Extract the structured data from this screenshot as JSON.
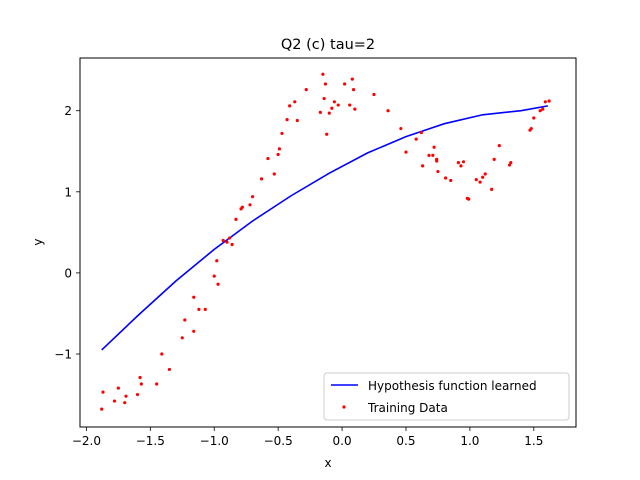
{
  "chart_data": {
    "type": "line",
    "title": "Q2 (c)  tau=2",
    "xlabel": "x",
    "ylabel": "y",
    "xlim": [
      -2.05,
      1.83
    ],
    "ylim": [
      -1.9,
      2.65
    ],
    "xticks": [
      -2.0,
      -1.5,
      -1.0,
      -0.5,
      0.0,
      0.5,
      1.0,
      1.5
    ],
    "xtick_labels": [
      "−2.0",
      "−1.5",
      "−1.0",
      "−0.5",
      "0.0",
      "0.5",
      "1.0",
      "1.5"
    ],
    "yticks": [
      -1,
      0,
      1,
      2
    ],
    "ytick_labels": [
      "−1",
      "0",
      "1",
      "2"
    ],
    "grid": false,
    "legend": {
      "position": "bottom-right"
    },
    "series": [
      {
        "name": "Hypothesis function learned",
        "kind": "line",
        "color": "#0000ff",
        "x": [
          -1.88,
          -1.6,
          -1.3,
          -1.0,
          -0.7,
          -0.4,
          -0.1,
          0.2,
          0.5,
          0.8,
          1.1,
          1.4,
          1.61
        ],
        "y": [
          -0.95,
          -0.53,
          -0.1,
          0.29,
          0.64,
          0.95,
          1.23,
          1.48,
          1.68,
          1.84,
          1.95,
          2.0,
          2.06
        ]
      },
      {
        "name": "Training Data",
        "kind": "scatter",
        "color": "#ff0000",
        "x": [
          -1.88,
          -1.87,
          -1.78,
          -1.75,
          -1.7,
          -1.69,
          -1.6,
          -1.58,
          -1.57,
          -1.45,
          -1.41,
          -1.35,
          -1.25,
          -1.23,
          -1.16,
          -1.16,
          -1.12,
          -1.07,
          -1.0,
          -0.98,
          -0.97,
          -0.93,
          -0.9,
          -0.88,
          -0.86,
          -0.83,
          -0.79,
          -0.78,
          -0.72,
          -0.7,
          -0.63,
          -0.58,
          -0.53,
          -0.5,
          -0.49,
          -0.47,
          -0.43,
          -0.41,
          -0.37,
          -0.35,
          -0.28,
          -0.17,
          -0.15,
          -0.14,
          -0.13,
          -0.12,
          -0.1,
          -0.08,
          -0.06,
          -0.03,
          0.02,
          0.06,
          0.08,
          0.09,
          0.1,
          0.25,
          0.36,
          0.46,
          0.5,
          0.58,
          0.62,
          0.63,
          0.68,
          0.71,
          0.72,
          0.74,
          0.74,
          0.75,
          0.81,
          0.85,
          0.91,
          0.93,
          0.95,
          0.98,
          0.99,
          1.05,
          1.08,
          1.1,
          1.12,
          1.17,
          1.19,
          1.23,
          1.31,
          1.32,
          1.47,
          1.48,
          1.5,
          1.55,
          1.57,
          1.59,
          1.62
        ],
        "y": [
          -1.68,
          -1.47,
          -1.58,
          -1.42,
          -1.6,
          -1.52,
          -1.5,
          -1.29,
          -1.37,
          -1.37,
          -1.0,
          -1.19,
          -0.8,
          -0.58,
          -0.72,
          -0.3,
          -0.45,
          -0.45,
          -0.04,
          0.15,
          -0.14,
          0.4,
          0.38,
          0.43,
          0.35,
          0.66,
          0.79,
          0.81,
          0.84,
          0.94,
          1.16,
          1.41,
          1.22,
          1.46,
          1.53,
          1.72,
          1.89,
          2.06,
          2.11,
          1.88,
          2.26,
          1.98,
          2.45,
          2.15,
          2.33,
          1.71,
          1.97,
          2.03,
          2.11,
          2.07,
          2.33,
          2.07,
          2.39,
          2.26,
          2.02,
          2.2,
          2.0,
          1.78,
          1.49,
          1.65,
          1.73,
          1.32,
          1.45,
          1.45,
          1.55,
          1.38,
          1.4,
          1.25,
          1.17,
          1.14,
          1.36,
          1.32,
          1.37,
          0.92,
          0.91,
          1.15,
          1.12,
          1.18,
          1.22,
          1.03,
          1.4,
          1.57,
          1.33,
          1.36,
          1.76,
          1.78,
          1.91,
          2.0,
          2.02,
          2.11,
          2.12
        ]
      }
    ]
  }
}
